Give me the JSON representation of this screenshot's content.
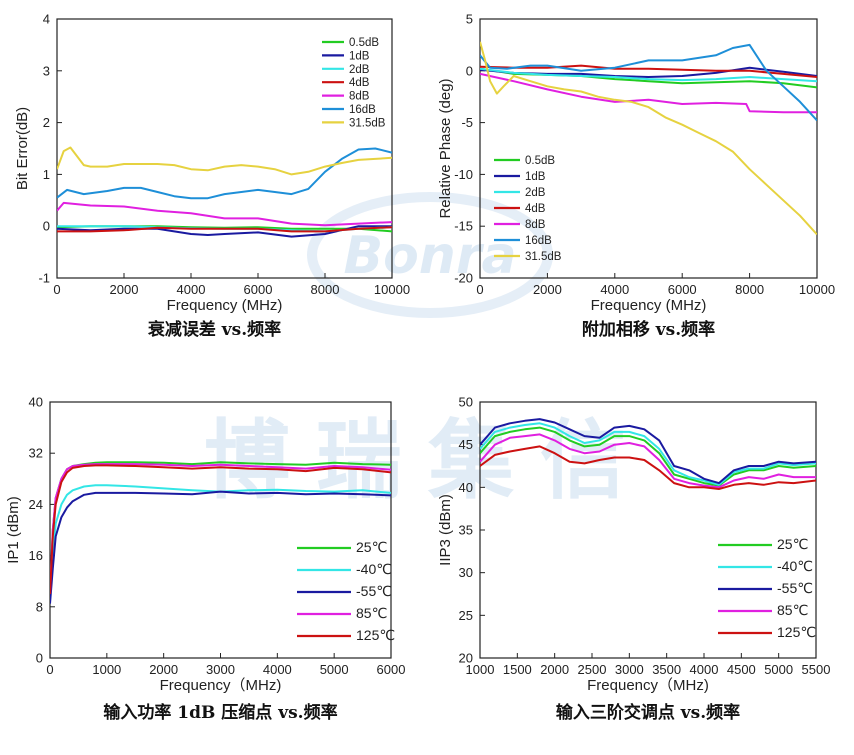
{
  "watermark": {
    "brand_mark": "Bonra",
    "text": "博瑞集信"
  },
  "chart_data": [
    {
      "id": "c1",
      "type": "line",
      "title": "衰减误差 vs.频率",
      "xlabel": "Frequency (MHz)",
      "ylabel": "Bit Error(dB)",
      "xlim": [
        0,
        10000
      ],
      "ylim": [
        -1,
        4
      ],
      "xticks": [
        0,
        2000,
        4000,
        6000,
        8000,
        10000
      ],
      "yticks": [
        -1,
        0,
        1,
        2,
        3,
        4
      ],
      "legend_position": "top-right",
      "series": [
        {
          "name": "0.5dB",
          "color": "#22cc22",
          "x": [
            0,
            1000,
            2000,
            3000,
            4000,
            5000,
            6000,
            7000,
            8000,
            9000,
            10000
          ],
          "y": [
            -0.02,
            0.0,
            0.0,
            0.0,
            -0.02,
            -0.03,
            -0.02,
            -0.05,
            -0.05,
            -0.05,
            -0.1
          ]
        },
        {
          "name": "1dB",
          "color": "#1a1aa0",
          "x": [
            0,
            1000,
            2000,
            3000,
            4000,
            4500,
            5000,
            6000,
            7000,
            8000,
            9000,
            10000
          ],
          "y": [
            -0.05,
            -0.08,
            -0.05,
            -0.05,
            -0.15,
            -0.17,
            -0.15,
            -0.12,
            -0.2,
            -0.15,
            0.0,
            0.0
          ]
        },
        {
          "name": "2dB",
          "color": "#33e6e6",
          "x": [
            0,
            1000,
            2000,
            3000,
            4000,
            5000,
            6000,
            7000,
            8000,
            9000,
            10000
          ],
          "y": [
            0.0,
            0.0,
            0.0,
            -0.02,
            -0.04,
            -0.05,
            -0.05,
            -0.08,
            -0.1,
            -0.05,
            -0.02
          ]
        },
        {
          "name": "4dB",
          "color": "#cc1111",
          "x": [
            0,
            1000,
            2000,
            3000,
            4000,
            5000,
            6000,
            7000,
            8000,
            9000,
            10000
          ],
          "y": [
            -0.1,
            -0.1,
            -0.08,
            -0.03,
            -0.05,
            -0.05,
            -0.05,
            -0.1,
            -0.1,
            -0.05,
            -0.02
          ]
        },
        {
          "name": "8dB",
          "color": "#e020e0",
          "x": [
            0,
            200,
            1000,
            2000,
            3000,
            4000,
            5000,
            6000,
            7000,
            8000,
            9000,
            10000
          ],
          "y": [
            0.3,
            0.45,
            0.4,
            0.38,
            0.3,
            0.25,
            0.15,
            0.15,
            0.05,
            0.02,
            0.05,
            0.08
          ]
        },
        {
          "name": "16dB",
          "color": "#1e8fd8",
          "x": [
            0,
            300,
            800,
            1500,
            2000,
            2500,
            3000,
            3500,
            4000,
            4500,
            5000,
            5500,
            6000,
            6500,
            7000,
            7500,
            8000,
            8500,
            9000,
            9500,
            10000
          ],
          "y": [
            0.55,
            0.7,
            0.62,
            0.68,
            0.74,
            0.74,
            0.66,
            0.58,
            0.54,
            0.54,
            0.62,
            0.66,
            0.7,
            0.66,
            0.62,
            0.72,
            1.05,
            1.3,
            1.48,
            1.5,
            1.42
          ]
        },
        {
          "name": "31.5dB",
          "color": "#e6d240",
          "x": [
            0,
            200,
            400,
            800,
            1000,
            1500,
            2000,
            2500,
            3000,
            3500,
            4000,
            4500,
            5000,
            5500,
            6000,
            6500,
            7000,
            7500,
            8000,
            8500,
            9000,
            9500,
            10000
          ],
          "y": [
            1.1,
            1.45,
            1.52,
            1.18,
            1.15,
            1.15,
            1.2,
            1.2,
            1.2,
            1.18,
            1.1,
            1.08,
            1.15,
            1.18,
            1.15,
            1.1,
            1.0,
            1.05,
            1.15,
            1.22,
            1.28,
            1.3,
            1.32
          ]
        }
      ]
    },
    {
      "id": "c2",
      "type": "line",
      "title": "附加相移 vs.频率",
      "xlabel": "Frequency (MHz)",
      "ylabel": "Relative Phase (deg)",
      "xlim": [
        0,
        10000
      ],
      "ylim": [
        -20,
        5
      ],
      "xticks": [
        0,
        2000,
        4000,
        6000,
        8000,
        10000
      ],
      "yticks": [
        -20,
        -15,
        -10,
        -5,
        0,
        5
      ],
      "legend_position": "bottom-left",
      "series": [
        {
          "name": "0.5dB",
          "color": "#22cc22",
          "x": [
            0,
            1000,
            2000,
            3000,
            4000,
            5000,
            6000,
            7000,
            8000,
            9000,
            10000
          ],
          "y": [
            0.2,
            -0.3,
            -0.4,
            -0.5,
            -0.8,
            -1.0,
            -1.2,
            -1.1,
            -1.0,
            -1.2,
            -1.6
          ]
        },
        {
          "name": "1dB",
          "color": "#1a1aa0",
          "x": [
            0,
            1000,
            2000,
            3000,
            4000,
            5000,
            6000,
            7000,
            8000,
            9000,
            10000
          ],
          "y": [
            0.1,
            -0.2,
            -0.3,
            -0.3,
            -0.5,
            -0.6,
            -0.5,
            -0.2,
            0.3,
            -0.1,
            -0.5
          ]
        },
        {
          "name": "2dB",
          "color": "#33e6e6",
          "x": [
            0,
            1000,
            2000,
            3000,
            4000,
            5000,
            6000,
            7000,
            8000,
            9000,
            10000
          ],
          "y": [
            0.2,
            -0.2,
            -0.4,
            -0.5,
            -0.6,
            -0.8,
            -0.9,
            -0.8,
            -0.6,
            -0.8,
            -1.0
          ]
        },
        {
          "name": "4dB",
          "color": "#cc1111",
          "x": [
            0,
            1000,
            2000,
            3000,
            4000,
            5000,
            6000,
            7000,
            8000,
            9000,
            10000
          ],
          "y": [
            0.4,
            0.3,
            0.3,
            0.5,
            0.2,
            0.2,
            0.1,
            0.0,
            0.0,
            -0.3,
            -0.6
          ]
        },
        {
          "name": "8dB",
          "color": "#e020e0",
          "x": [
            0,
            1000,
            2000,
            3000,
            4000,
            5000,
            6000,
            7000,
            7900,
            8000,
            9000,
            10000
          ],
          "y": [
            -0.3,
            -1.0,
            -1.8,
            -2.5,
            -3.0,
            -2.8,
            -3.2,
            -3.1,
            -3.2,
            -3.9,
            -4.0,
            -4.0
          ]
        },
        {
          "name": "16dB",
          "color": "#1e8fd8",
          "x": [
            0,
            300,
            800,
            1500,
            2000,
            3000,
            4000,
            5000,
            6000,
            7000,
            7500,
            8000,
            8500,
            9000,
            9500,
            10000
          ],
          "y": [
            1.5,
            0.3,
            0.2,
            0.5,
            0.5,
            0.0,
            0.3,
            1.0,
            1.0,
            1.5,
            2.2,
            2.5,
            0.0,
            -1.5,
            -3.0,
            -4.8
          ]
        },
        {
          "name": "31.5dB",
          "color": "#e6d240",
          "x": [
            0,
            150,
            300,
            500,
            700,
            1000,
            1500,
            2000,
            2500,
            3000,
            3500,
            4000,
            4500,
            5000,
            5500,
            6000,
            6500,
            7000,
            7500,
            8000,
            8500,
            9000,
            9500,
            10000
          ],
          "y": [
            2.8,
            1.0,
            -1.0,
            -2.2,
            -1.5,
            -0.5,
            -1.0,
            -1.5,
            -1.8,
            -2.0,
            -2.5,
            -2.8,
            -3.0,
            -3.5,
            -4.5,
            -5.2,
            -6.0,
            -6.8,
            -7.8,
            -9.5,
            -11.0,
            -12.5,
            -14.0,
            -15.8
          ]
        }
      ]
    },
    {
      "id": "c3",
      "type": "line",
      "title": "输入功率 1dB 压缩点 vs.频率",
      "xlabel": "Frequency（MHz)",
      "ylabel": "IP1 (dBm)",
      "xlim": [
        0,
        6000
      ],
      "ylim": [
        0,
        40
      ],
      "xticks": [
        0,
        1000,
        2000,
        3000,
        4000,
        5000,
        6000
      ],
      "yticks": [
        0,
        8,
        16,
        24,
        32,
        40
      ],
      "legend_position": "bottom-right",
      "series": [
        {
          "name": "25℃",
          "color": "#22cc22",
          "x": [
            0,
            50,
            100,
            200,
            300,
            400,
            600,
            800,
            1000,
            1500,
            2000,
            2500,
            3000,
            3500,
            4000,
            4500,
            5000,
            5500,
            6000
          ],
          "y": [
            10,
            20,
            25,
            28,
            29.5,
            30,
            30.3,
            30.5,
            30.6,
            30.6,
            30.5,
            30.3,
            30.6,
            30.4,
            30.3,
            30.2,
            30.5,
            30.3,
            30.2
          ]
        },
        {
          "name": "-40℃",
          "color": "#33e6e6",
          "x": [
            0,
            50,
            100,
            200,
            300,
            400,
            600,
            800,
            1000,
            1500,
            2000,
            2500,
            3000,
            3500,
            4000,
            4500,
            5000,
            5500,
            6000
          ],
          "y": [
            9,
            16,
            21,
            24,
            25.5,
            26.2,
            26.8,
            27,
            27,
            26.8,
            26.5,
            26.2,
            26,
            26.2,
            26.3,
            26.1,
            26.0,
            26.2,
            25.8
          ]
        },
        {
          "name": "-55℃",
          "color": "#1a1aa0",
          "x": [
            0,
            50,
            100,
            200,
            300,
            400,
            600,
            800,
            1000,
            1500,
            2000,
            2500,
            3000,
            3500,
            4000,
            4500,
            5000,
            5500,
            6000
          ],
          "y": [
            8.5,
            14,
            19,
            22,
            23.5,
            24.5,
            25.5,
            25.8,
            25.8,
            25.8,
            25.7,
            25.6,
            26,
            25.7,
            25.8,
            25.6,
            25.7,
            25.6,
            25.4
          ]
        },
        {
          "name": "85℃",
          "color": "#e020e0",
          "x": [
            0,
            50,
            100,
            200,
            300,
            400,
            600,
            800,
            1000,
            1500,
            2000,
            2500,
            3000,
            3500,
            4000,
            4500,
            5000,
            5500,
            6000
          ],
          "y": [
            10,
            20,
            25,
            28,
            29.5,
            30,
            30.2,
            30.3,
            30.3,
            30.3,
            30.2,
            30.0,
            30.2,
            30.0,
            29.8,
            29.6,
            30.0,
            29.8,
            29.4
          ]
        },
        {
          "name": "125℃",
          "color": "#cc1111",
          "x": [
            0,
            50,
            100,
            200,
            300,
            400,
            600,
            800,
            1000,
            1500,
            2000,
            2500,
            3000,
            3500,
            4000,
            4500,
            5000,
            5500,
            6000
          ],
          "y": [
            10,
            19,
            24,
            27.5,
            29,
            29.7,
            30,
            30.1,
            30.1,
            30.0,
            29.8,
            29.6,
            29.8,
            29.6,
            29.5,
            29.2,
            29.7,
            29.5,
            29.0
          ]
        }
      ]
    },
    {
      "id": "c4",
      "type": "line",
      "title": "输入三阶交调点 vs.频率",
      "xlabel": "Frequency（MHz)",
      "ylabel": "IIP3 (dBm)",
      "xlim": [
        1000,
        5500
      ],
      "ylim": [
        20,
        50
      ],
      "xticks": [
        1000,
        1500,
        2000,
        2500,
        3000,
        3500,
        4000,
        4500,
        5000,
        5500
      ],
      "yticks": [
        20,
        25,
        30,
        35,
        40,
        45,
        50
      ],
      "legend_position": "bottom-right",
      "series": [
        {
          "name": "25℃",
          "color": "#22cc22",
          "x": [
            1000,
            1200,
            1400,
            1600,
            1800,
            2000,
            2200,
            2400,
            2600,
            2800,
            3000,
            3200,
            3400,
            3600,
            3800,
            4000,
            4200,
            4400,
            4600,
            4800,
            5000,
            5200,
            5500
          ],
          "y": [
            44,
            46,
            46.5,
            46.8,
            47,
            46.5,
            45.5,
            44.8,
            45,
            46,
            46,
            45.5,
            44,
            41.5,
            41,
            40.5,
            40.2,
            41.5,
            42,
            42,
            42.5,
            42.3,
            42.5
          ]
        },
        {
          "name": "-40℃",
          "color": "#33e6e6",
          "x": [
            1000,
            1200,
            1400,
            1600,
            1800,
            2000,
            2200,
            2400,
            2600,
            2800,
            3000,
            3200,
            3400,
            3600,
            3800,
            4000,
            4200,
            4400,
            4600,
            4800,
            5000,
            5200,
            5500
          ],
          "y": [
            44.5,
            46.5,
            47,
            47.3,
            47.5,
            47,
            46,
            45.2,
            45.5,
            46.5,
            46.5,
            46,
            44.5,
            42,
            41.2,
            40.8,
            40.3,
            41.8,
            42.2,
            42.2,
            42.8,
            42.6,
            42.8
          ]
        },
        {
          "name": "-55℃",
          "color": "#1a1aa0",
          "x": [
            1000,
            1200,
            1400,
            1600,
            1800,
            2000,
            2200,
            2400,
            2600,
            2800,
            3000,
            3200,
            3400,
            3600,
            3800,
            4000,
            4200,
            4400,
            4600,
            4800,
            5000,
            5200,
            5500
          ],
          "y": [
            45,
            47,
            47.5,
            47.8,
            48,
            47.6,
            46.8,
            46,
            45.8,
            47,
            47.2,
            46.8,
            45.5,
            42.5,
            42,
            41,
            40.5,
            42,
            42.5,
            42.5,
            43,
            42.8,
            43
          ]
        },
        {
          "name": "85℃",
          "color": "#e020e0",
          "x": [
            1000,
            1200,
            1400,
            1600,
            1800,
            2000,
            2200,
            2400,
            2600,
            2800,
            3000,
            3200,
            3400,
            3600,
            3800,
            4000,
            4200,
            4400,
            4600,
            4800,
            5000,
            5200,
            5500
          ],
          "y": [
            43,
            45,
            45.8,
            46,
            46.2,
            45.5,
            44.5,
            44,
            44.2,
            45,
            45.2,
            44.8,
            43.2,
            41,
            40.5,
            40.2,
            40,
            40.8,
            41.2,
            41,
            41.5,
            41.2,
            41.2
          ]
        },
        {
          "name": "125℃",
          "color": "#cc1111",
          "x": [
            1000,
            1200,
            1400,
            1600,
            1800,
            2000,
            2200,
            2400,
            2600,
            2800,
            3000,
            3200,
            3400,
            3600,
            3800,
            4000,
            4200,
            4400,
            4600,
            4800,
            5000,
            5200,
            5500
          ],
          "y": [
            42.5,
            43.8,
            44.2,
            44.5,
            44.8,
            44,
            43,
            42.8,
            43.2,
            43.5,
            43.5,
            43.2,
            42,
            40.5,
            40,
            40,
            39.8,
            40.3,
            40.5,
            40.3,
            40.6,
            40.5,
            40.8
          ]
        }
      ]
    }
  ]
}
